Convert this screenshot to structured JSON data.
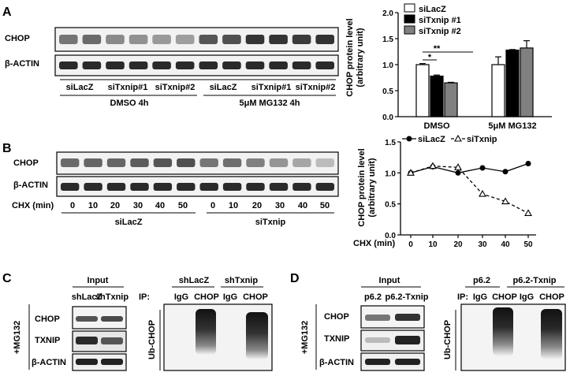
{
  "panels": {
    "A": {
      "letter": "A",
      "blot": {
        "rows": [
          "CHOP",
          "β-ACTIN"
        ],
        "lanes": [
          "siLacZ",
          "siTxnip#1",
          "siTxnip#2",
          "siLacZ",
          "siTxnip#1",
          "siTxnip#2"
        ],
        "groups": [
          "DMSO 4h",
          "5μM MG132 4h"
        ],
        "chop_intensity": [
          0.55,
          0.6,
          0.45,
          0.42,
          0.38,
          0.36,
          0.7,
          0.72,
          0.85,
          0.85,
          0.82,
          0.86
        ],
        "actin_intensity": [
          0.9,
          0.9,
          0.9,
          0.9,
          0.9,
          0.9,
          0.9,
          0.9,
          0.9,
          0.9,
          0.9,
          0.9
        ]
      }
    },
    "B": {
      "letter": "B",
      "blot": {
        "rows": [
          "CHOP",
          "β-ACTIN"
        ],
        "treatment_label": "CHX (min)",
        "time_ticks": [
          "0",
          "10",
          "20",
          "30",
          "40",
          "50",
          "0",
          "10",
          "20",
          "30",
          "40",
          "50"
        ],
        "groups": [
          "siLacZ",
          "siTxnip"
        ],
        "chop_intensity": [
          0.6,
          0.62,
          0.62,
          0.66,
          0.7,
          0.72,
          0.55,
          0.58,
          0.5,
          0.4,
          0.32,
          0.22
        ],
        "actin_intensity": [
          0.9,
          0.9,
          0.9,
          0.9,
          0.9,
          0.9,
          0.9,
          0.9,
          0.9,
          0.9,
          0.9,
          0.9
        ]
      }
    },
    "C": {
      "letter": "C",
      "input_label": "Input",
      "input_lanes": [
        "shLacZ",
        "shTxnip"
      ],
      "side_label": "+MG132",
      "rows": [
        "CHOP",
        "TXNIP",
        "β-ACTIN"
      ],
      "ip_prefix": "IP:",
      "ip_groups": [
        "shLacZ",
        "shTxnip"
      ],
      "ip_lanes": [
        "IgG",
        "CHOP",
        "IgG",
        "CHOP"
      ],
      "ub_label": "Ub-CHOP"
    },
    "D": {
      "letter": "D",
      "input_label": "Input",
      "input_lanes": [
        "p6.2",
        "p6.2-Txnip"
      ],
      "side_label": "+MG132",
      "rows": [
        "CHOP",
        "TXNIP",
        "β-ACTIN"
      ],
      "ip_prefix": "IP:",
      "ip_groups": [
        "p6.2",
        "p6.2-Txnip"
      ],
      "ip_lanes": [
        "IgG",
        "CHOP",
        "IgG",
        "CHOP"
      ],
      "ub_label": "Ub-CHOP"
    }
  },
  "chart_data": [
    {
      "type": "bar",
      "categories": [
        "DMSO",
        "5μM MG132"
      ],
      "series": [
        {
          "name": "siLacZ",
          "values": [
            1.0,
            1.0
          ],
          "errors": [
            0.02,
            0.15
          ],
          "color": "#ffffff"
        },
        {
          "name": "siTxnip #1",
          "values": [
            0.78,
            1.28
          ],
          "errors": [
            0.02,
            0.01
          ],
          "color": "#000000"
        },
        {
          "name": "siTxnip #2",
          "values": [
            0.65,
            1.32
          ],
          "errors": [
            0.01,
            0.14
          ],
          "color": "#808080"
        }
      ],
      "ylabel": "CHOP protein level\n(arbitrary unit)",
      "ylim": [
        0,
        2.0
      ],
      "yticks": [
        "0.0",
        "0.5",
        "1.0",
        "1.5",
        "2.0"
      ],
      "annotations": [
        "*",
        "**"
      ],
      "legend": "top-right",
      "grid": false
    },
    {
      "type": "line",
      "x": [
        0,
        10,
        20,
        30,
        40,
        50
      ],
      "series": [
        {
          "name": "siLacZ",
          "values": [
            1.0,
            1.1,
            1.0,
            1.08,
            1.02,
            1.15
          ],
          "marker": "circle",
          "style": "solid"
        },
        {
          "name": "siTxnip",
          "values": [
            1.0,
            1.11,
            1.09,
            0.66,
            0.54,
            0.35
          ],
          "marker": "triangle",
          "style": "dashed"
        }
      ],
      "xlabel": "CHX (min)",
      "ylabel": "CHOP protein level\n(arbitrary unit)",
      "ylim": [
        0,
        1.5
      ],
      "yticks": [
        "0.0",
        "0.5",
        "1.0",
        "1.5"
      ],
      "xticks": [
        "0",
        "10",
        "20",
        "30",
        "40",
        "50"
      ],
      "legend": "top",
      "grid": false
    }
  ]
}
